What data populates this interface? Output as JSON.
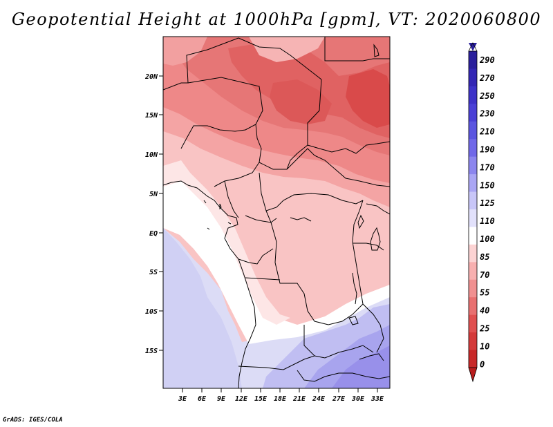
{
  "title": "Geopotential Height at 1000hPa [gpm], VT: 2020060800",
  "credit": "GrADS: IGES/COLA",
  "map": {
    "lon_labels": [
      "3E",
      "6E",
      "9E",
      "12E",
      "15E",
      "18E",
      "21E",
      "24E",
      "27E",
      "30E",
      "33E"
    ],
    "lat_labels": [
      "20N",
      "15N",
      "10N",
      "5N",
      "EQ",
      "5S",
      "10S",
      "15S"
    ]
  },
  "colorbar": {
    "labels": [
      "290",
      "270",
      "250",
      "230",
      "210",
      "190",
      "170",
      "150",
      "125",
      "110",
      "100",
      "85",
      "70",
      "55",
      "40",
      "25",
      "10",
      "0"
    ],
    "top_color": "#2a1f9c",
    "bottom_color": "#b81c1c",
    "colors": [
      "#2a1f9c",
      "#3326b4",
      "#3d32c8",
      "#4a40d6",
      "#5b55e0",
      "#7068e8",
      "#8c86ee",
      "#aaa6f4",
      "#c8c6f8",
      "#e2e1fb",
      "#ffffff",
      "#fcd3d3",
      "#f8b0b0",
      "#f09090",
      "#e87070",
      "#e05050",
      "#d43a3a",
      "#c82828"
    ]
  }
}
